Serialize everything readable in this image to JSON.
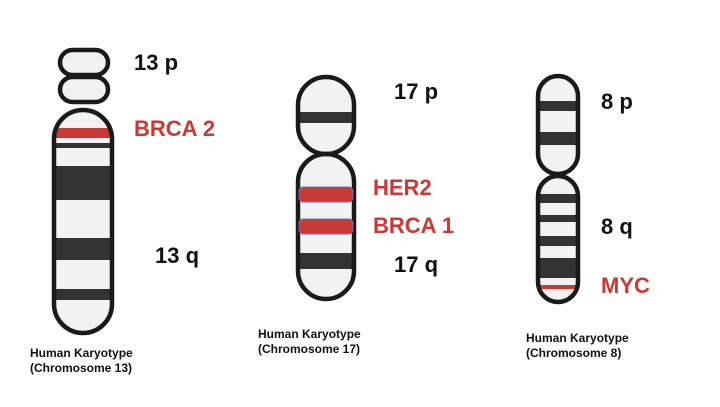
{
  "colors": {
    "outline": "#1a1a1a",
    "body_fill": "#f2f2f2",
    "dark_band": "#333333",
    "gene_band": "#c93a36",
    "gene_text": "#c93a36",
    "label_text": "#111111"
  },
  "chromosomes": [
    {
      "id": "chr13",
      "arm_p_label": "13 p",
      "arm_q_label": "13 q",
      "gene_labels": [
        "BRCA 2"
      ],
      "caption_line1": "Human Karyotype",
      "caption_line2": "(Chromosome 13)"
    },
    {
      "id": "chr17",
      "arm_p_label": "17 p",
      "arm_q_label": "17 q",
      "gene_labels": [
        "HER2",
        "BRCA 1"
      ],
      "caption_line1": "Human Karyotype",
      "caption_line2": "(Chromosome 17)"
    },
    {
      "id": "chr8",
      "arm_p_label": "8 p",
      "arm_q_label": "8 q",
      "gene_labels": [
        "MYC"
      ],
      "caption_line1": "Human Karyotype",
      "caption_line2": "(Chromosome 8)"
    }
  ]
}
